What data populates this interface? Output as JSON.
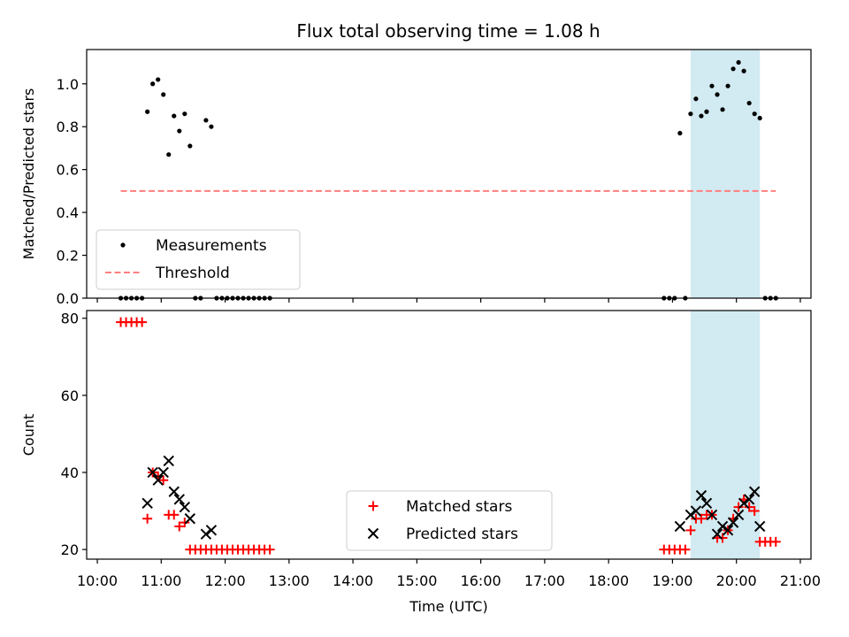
{
  "figure": {
    "title": "Flux total observing time = 1.08 h"
  },
  "colors": {
    "measurement": "#000000",
    "threshold": "#ff7f7f",
    "matched": "#ff0000",
    "predicted": "#000000",
    "highlight": "#add8e6"
  },
  "chart_data": [
    {
      "type": "scatter",
      "panel": "top",
      "title": "Flux total observing time = 1.08 h",
      "xlabel": "",
      "ylabel": "Matched/Predicted stars",
      "xlim": [
        "09:50",
        "21:10"
      ],
      "ylim": [
        0,
        1.16
      ],
      "yticks": [
        0.0,
        0.2,
        0.4,
        0.6,
        0.8,
        1.0
      ],
      "ytick_labels": [
        "0.0",
        "0.2",
        "0.4",
        "0.6",
        "0.8",
        "1.0"
      ],
      "highlight_span": [
        "19:17",
        "20:22"
      ],
      "legend": {
        "location": "lower left",
        "entries": [
          "Measurements",
          "Threshold"
        ]
      },
      "threshold": {
        "name": "Threshold",
        "value": 0.5,
        "x_range": [
          "10:22",
          "20:37"
        ],
        "style": "dashed"
      },
      "series": [
        {
          "name": "Measurements",
          "marker": "point",
          "x": [
            "10:22",
            "10:27",
            "10:32",
            "10:37",
            "10:42",
            "10:47",
            "10:52",
            "10:57",
            "11:02",
            "11:07",
            "11:12",
            "11:17",
            "11:22",
            "11:27",
            "11:32",
            "11:37",
            "11:42",
            "11:47",
            "11:52",
            "11:57",
            "12:02",
            "12:07",
            "12:12",
            "12:17",
            "12:22",
            "12:27",
            "12:32",
            "12:37",
            "12:42",
            "18:52",
            "18:57",
            "19:02",
            "19:07",
            "19:12",
            "19:17",
            "19:22",
            "19:27",
            "19:32",
            "19:37",
            "19:42",
            "19:47",
            "19:52",
            "19:57",
            "20:02",
            "20:07",
            "20:12",
            "20:17",
            "20:22",
            "20:27",
            "20:32",
            "20:37"
          ],
          "y": [
            0,
            0,
            0,
            0,
            0,
            0.87,
            1.0,
            1.02,
            0.95,
            0.67,
            0.85,
            0.78,
            0.86,
            0.71,
            0,
            0,
            0.83,
            0.8,
            0,
            0,
            0,
            0,
            0,
            0,
            0,
            0,
            0,
            0,
            0,
            0,
            0,
            0,
            0.77,
            0,
            0.86,
            0.93,
            0.85,
            0.87,
            0.99,
            0.95,
            0.88,
            0.99,
            1.07,
            1.1,
            1.06,
            0.91,
            0.86,
            0.84,
            0,
            0,
            0
          ]
        }
      ]
    },
    {
      "type": "scatter",
      "panel": "bottom",
      "xlabel": "Time (UTC)",
      "ylabel": "Count",
      "xlim": [
        "09:50",
        "21:10"
      ],
      "ylim": [
        17.5,
        82
      ],
      "xticks": [
        "10:00",
        "11:00",
        "12:00",
        "13:00",
        "14:00",
        "15:00",
        "16:00",
        "17:00",
        "18:00",
        "19:00",
        "20:00",
        "21:00"
      ],
      "yticks": [
        20,
        40,
        60,
        80
      ],
      "ytick_labels": [
        "20",
        "40",
        "60",
        "80"
      ],
      "highlight_span": [
        "19:17",
        "20:22"
      ],
      "legend": {
        "location": "lower center",
        "entries": [
          "Matched stars",
          "Predicted stars"
        ]
      },
      "series": [
        {
          "name": "Matched stars",
          "marker": "plus",
          "x": [
            "10:22",
            "10:27",
            "10:32",
            "10:37",
            "10:42",
            "10:47",
            "10:52",
            "10:57",
            "11:02",
            "11:07",
            "11:12",
            "11:17",
            "11:22",
            "11:27",
            "11:32",
            "11:37",
            "11:42",
            "11:47",
            "11:52",
            "11:57",
            "12:02",
            "12:07",
            "12:12",
            "12:17",
            "12:22",
            "12:27",
            "12:32",
            "12:37",
            "12:42",
            "18:52",
            "18:57",
            "19:02",
            "19:07",
            "19:12",
            "19:17",
            "19:22",
            "19:27",
            "19:32",
            "19:37",
            "19:42",
            "19:47",
            "19:52",
            "19:57",
            "20:02",
            "20:07",
            "20:12",
            "20:17",
            "20:22",
            "20:27",
            "20:32",
            "20:37"
          ],
          "y": [
            79,
            79,
            79,
            79,
            79,
            28,
            40,
            39,
            38,
            29,
            29,
            26,
            27,
            20,
            20,
            20,
            20,
            20,
            20,
            20,
            20,
            20,
            20,
            20,
            20,
            20,
            20,
            20,
            20,
            20,
            20,
            20,
            20,
            20,
            25,
            28,
            28,
            29,
            29,
            23,
            23,
            25,
            28,
            31,
            33,
            31,
            30,
            22,
            22,
            22,
            22
          ]
        },
        {
          "name": "Predicted stars",
          "marker": "x",
          "x": [
            "10:47",
            "10:52",
            "10:57",
            "11:02",
            "11:07",
            "11:12",
            "11:17",
            "11:22",
            "11:27",
            "11:42",
            "11:47",
            "19:07",
            "19:17",
            "19:22",
            "19:27",
            "19:32",
            "19:37",
            "19:42",
            "19:47",
            "19:52",
            "19:57",
            "20:02",
            "20:07",
            "20:12",
            "20:17",
            "20:22"
          ],
          "y": [
            32,
            40,
            38,
            40,
            43,
            35,
            33,
            31,
            28,
            24,
            25,
            26,
            29,
            30,
            34,
            32,
            29,
            24,
            26,
            25,
            27,
            29,
            32,
            33,
            35,
            26
          ]
        }
      ]
    }
  ]
}
